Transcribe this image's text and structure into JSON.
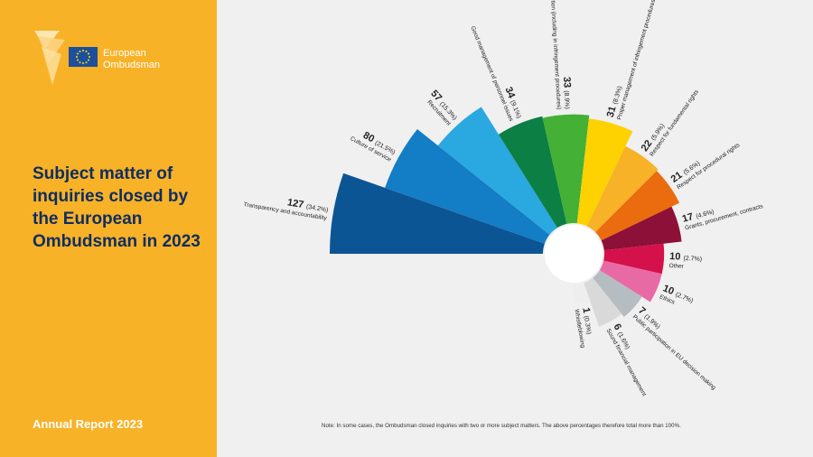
{
  "brand": {
    "name_line1": "European",
    "name_line2": "Ombudsman"
  },
  "title": "Subject matter of inquiries closed by the European Ombudsman in 2023",
  "footer": {
    "report": "Annual Report 2023",
    "note": "Note:  In some cases, the Ombudsman closed inquiries with two or more subject matters. The above percentages therefore total more than 100%."
  },
  "colors": {
    "sidebar": "#f7b227",
    "title": "#0f2d62",
    "background": "#f0f0f0"
  },
  "chart_data": {
    "type": "radial-bar",
    "title": "Subject matter of inquiries closed by the European Ombudsman in 2023",
    "categories": [
      "Transparency and accountability",
      "Culture of service",
      "Recruitment",
      "Good management of personnel issues",
      "Proper use of discretion (including in infringement procedures)",
      "Proper management of infringement procedures",
      "Respect for fundamental rights",
      "Respect for procedural rights",
      "Grants, procurement, contracts",
      "Other",
      "Ethics",
      "Public participation in EU decision making",
      "Sound financial management",
      "Whistleblowing"
    ],
    "values": [
      127,
      80,
      57,
      34,
      33,
      31,
      22,
      21,
      17,
      10,
      10,
      7,
      6,
      1
    ],
    "percentages": [
      "34.2%",
      "21.5%",
      "15.3%",
      "9.1%",
      "8.9%",
      "8.3%",
      "5.9%",
      "5.6%",
      "4.6%",
      "2.7%",
      "2.7%",
      "1.9%",
      "1.6%",
      "0.3%"
    ],
    "colors": [
      "#0c5595",
      "#137dc5",
      "#2aa8e0",
      "#0c7f44",
      "#44b035",
      "#fdd200",
      "#f7b227",
      "#eb6c0e",
      "#8d1038",
      "#d4114a",
      "#e86aa5",
      "#b5bdc3",
      "#d9d9d9",
      "#eeeeee"
    ]
  }
}
